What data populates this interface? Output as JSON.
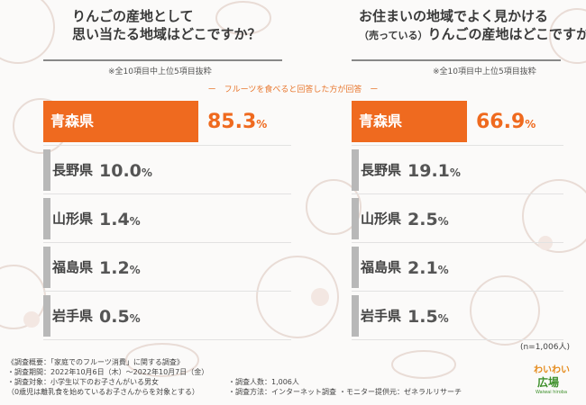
{
  "colors": {
    "accent": "#ef6a1f",
    "other_bar": "#b8b8b8"
  },
  "left": {
    "title_line1": "りんごの産地として",
    "title_line2": "思い当たる地域はどこですか？",
    "note": "※全10項目中上位5項目抜粋"
  },
  "right": {
    "title_line1": "お住まいの地域でよく見かける",
    "title_line2_small": "（売っている）",
    "title_line2": "りんごの産地はどこですか？",
    "note": "※全10項目中上位5項目抜粋"
  },
  "subtitle": "ー　フルーツを食べると回答した方が回答　ー",
  "n_label": "(n=1,006人)",
  "footer": {
    "line1": "《調査概要：「家庭でのフルーツ消費」に関する調査》",
    "line2": "・調査期間：2022年10月6日（木）〜2022年10月7日（金）",
    "line3": "・調査対象：小学生以下のお子さんがいる男女",
    "line4": "（0歳児は離乳食を始めているお子さんからを対象とする）",
    "people": "・調査人数：1,006人",
    "method": "・調査方法：インターネット調査",
    "monitor": "・モニター提供元：ゼネラルリサーチ"
  },
  "logo": {
    "line1": "わいわい",
    "line2": "広場",
    "line3": "Waiwai hiroba"
  },
  "chart_data": [
    {
      "type": "bar",
      "orientation": "horizontal",
      "categories": [
        "青森県",
        "長野県",
        "山形県",
        "福島県",
        "岩手県"
      ],
      "values": [
        85.3,
        10.0,
        1.4,
        1.2,
        0.5
      ],
      "value_labels": [
        {
          "num": "85.3",
          "unit": "%"
        },
        {
          "num": "10.0",
          "unit": "%"
        },
        {
          "num": "1.4",
          "unit": "%"
        },
        {
          "num": "1.2",
          "unit": "%"
        },
        {
          "num": "0.5",
          "unit": "%"
        }
      ],
      "xlim": [
        0,
        100
      ]
    },
    {
      "type": "bar",
      "orientation": "horizontal",
      "categories": [
        "青森県",
        "長野県",
        "山形県",
        "福島県",
        "岩手県"
      ],
      "values": [
        66.9,
        19.1,
        2.5,
        2.1,
        1.5
      ],
      "value_labels": [
        {
          "num": "66.9",
          "unit": "%"
        },
        {
          "num": "19.1",
          "unit": "%"
        },
        {
          "num": "2.5",
          "unit": "%"
        },
        {
          "num": "2.1",
          "unit": "%"
        },
        {
          "num": "1.5",
          "unit": "%"
        }
      ],
      "xlim": [
        0,
        100
      ]
    }
  ]
}
